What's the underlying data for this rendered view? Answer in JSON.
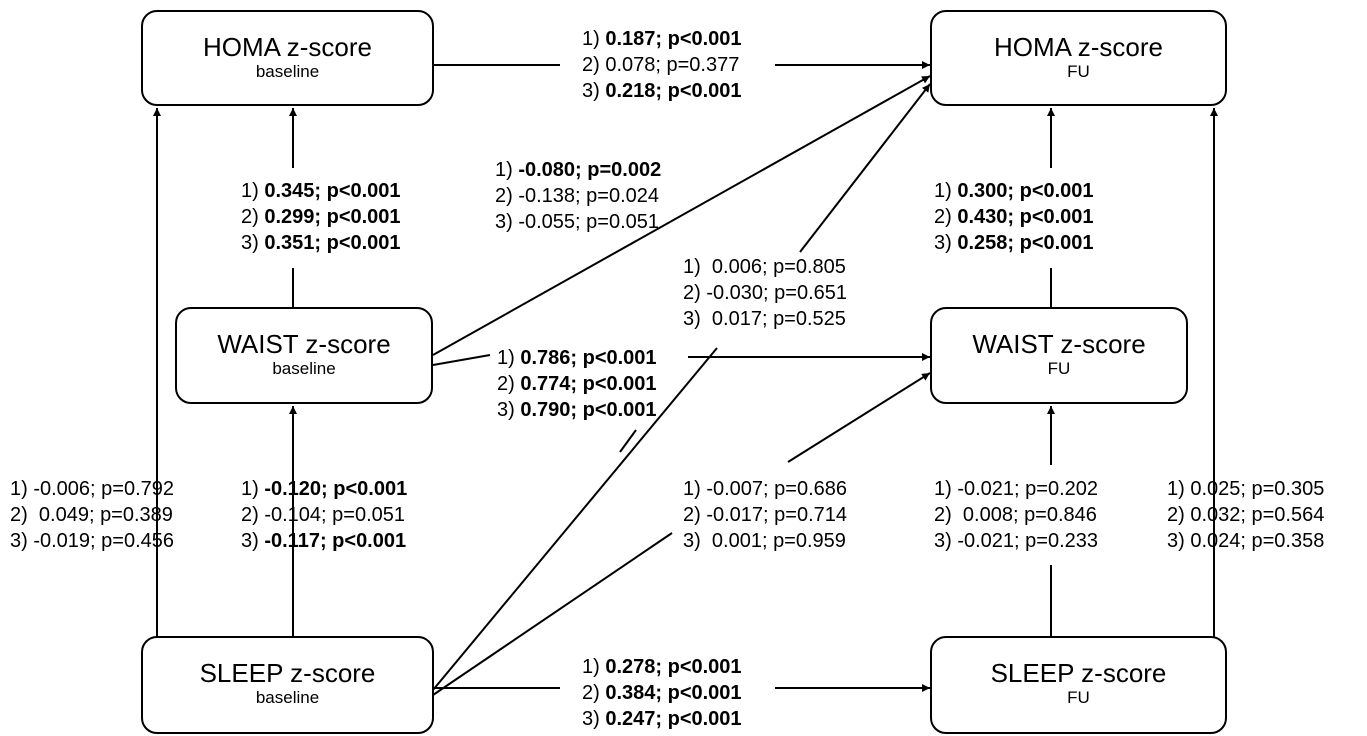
{
  "nodes": {
    "homa_base": {
      "title": "HOMA z-score",
      "sub": "baseline"
    },
    "waist_base": {
      "title": "WAIST z-score",
      "sub": "baseline"
    },
    "sleep_base": {
      "title": "SLEEP z-score",
      "sub": "baseline"
    },
    "homa_fu": {
      "title": "HOMA z-score",
      "sub": "FU"
    },
    "waist_fu": {
      "title": "WAIST z-score",
      "sub": "FU"
    },
    "sleep_fu": {
      "title": "SLEEP z-score",
      "sub": "FU"
    }
  },
  "edges": [
    {
      "id": "homa-base-to-homa-fu",
      "from": "homa_base",
      "to": "homa_fu",
      "lines": [
        {
          "n": "1)",
          "v": "0.187; p<0.001",
          "bold": true
        },
        {
          "n": "2)",
          "v": "0.078; p=0.377",
          "bold": false
        },
        {
          "n": "3)",
          "v": "0.218; p<0.001",
          "bold": true
        }
      ]
    },
    {
      "id": "waist-base-to-homa-base",
      "from": "waist_base",
      "to": "homa_base",
      "lines": [
        {
          "n": "1)",
          "v": "0.345; p<0.001",
          "bold": true
        },
        {
          "n": "2)",
          "v": "0.299; p<0.001",
          "bold": true
        },
        {
          "n": "3)",
          "v": "0.351; p<0.001",
          "bold": true
        }
      ]
    },
    {
      "id": "waist-base-to-homa-fu",
      "from": "waist_base",
      "to": "homa_fu",
      "lines": [
        {
          "n": "1)",
          "v": "-0.080; p=0.002",
          "bold": true
        },
        {
          "n": "2)",
          "v": "-0.138; p=0.024",
          "bold": false
        },
        {
          "n": "3)",
          "v": "-0.055; p=0.051",
          "bold": false
        }
      ]
    },
    {
      "id": "sleep-base-to-homa-fu",
      "from": "sleep_base",
      "to": "homa_fu",
      "lines": [
        {
          "n": "1)",
          "v": " 0.006; p=0.805",
          "bold": false
        },
        {
          "n": "2)",
          "v": "-0.030; p=0.651",
          "bold": false
        },
        {
          "n": "3)",
          "v": " 0.017; p=0.525",
          "bold": false
        }
      ]
    },
    {
      "id": "waist-base-to-waist-fu",
      "from": "waist_base",
      "to": "waist_fu",
      "lines": [
        {
          "n": "1)",
          "v": "0.786; p<0.001",
          "bold": true
        },
        {
          "n": "2)",
          "v": "0.774; p<0.001",
          "bold": true
        },
        {
          "n": "3)",
          "v": "0.790; p<0.001",
          "bold": true
        }
      ]
    },
    {
      "id": "waist-fu-to-homa-fu",
      "from": "waist_fu",
      "to": "homa_fu",
      "lines": [
        {
          "n": "1)",
          "v": "0.300; p<0.001",
          "bold": true
        },
        {
          "n": "2)",
          "v": "0.430; p<0.001",
          "bold": true
        },
        {
          "n": "3)",
          "v": "0.258; p<0.001",
          "bold": true
        }
      ]
    },
    {
      "id": "sleep-base-to-homa-base",
      "from": "sleep_base",
      "to": "homa_base",
      "lines": [
        {
          "n": "1)",
          "v": "-0.006; p=0.792",
          "bold": false
        },
        {
          "n": "2)",
          "v": " 0.049; p=0.389",
          "bold": false
        },
        {
          "n": "3)",
          "v": "-0.019; p=0.456",
          "bold": false
        }
      ]
    },
    {
      "id": "sleep-base-to-waist-base",
      "from": "sleep_base",
      "to": "waist_base",
      "lines": [
        {
          "n": "1)",
          "v": "-0.120; p<0.001",
          "bold": true
        },
        {
          "n": "2)",
          "v": "-0.104; p=0.051",
          "bold": false
        },
        {
          "n": "3)",
          "v": "-0.117; p<0.001",
          "bold": true
        }
      ]
    },
    {
      "id": "sleep-base-to-waist-fu",
      "from": "sleep_base",
      "to": "waist_fu",
      "lines": [
        {
          "n": "1)",
          "v": "-0.007; p=0.686",
          "bold": false
        },
        {
          "n": "2)",
          "v": "-0.017; p=0.714",
          "bold": false
        },
        {
          "n": "3)",
          "v": " 0.001; p=0.959",
          "bold": false
        }
      ]
    },
    {
      "id": "sleep-fu-to-waist-fu",
      "from": "sleep_fu",
      "to": "waist_fu",
      "lines": [
        {
          "n": "1)",
          "v": "-0.021; p=0.202",
          "bold": false
        },
        {
          "n": "2)",
          "v": " 0.008; p=0.846",
          "bold": false
        },
        {
          "n": "3)",
          "v": "-0.021; p=0.233",
          "bold": false
        }
      ]
    },
    {
      "id": "sleep-fu-to-homa-fu",
      "from": "sleep_fu",
      "to": "homa_fu",
      "lines": [
        {
          "n": "1)",
          "v": "0.025; p=0.305",
          "bold": false
        },
        {
          "n": "2)",
          "v": "0.032; p=0.564",
          "bold": false
        },
        {
          "n": "3)",
          "v": "0.024; p=0.358",
          "bold": false
        }
      ]
    },
    {
      "id": "sleep-base-to-sleep-fu",
      "from": "sleep_base",
      "to": "sleep_fu",
      "lines": [
        {
          "n": "1)",
          "v": "0.278; p<0.001",
          "bold": true
        },
        {
          "n": "2)",
          "v": "0.384; p<0.001",
          "bold": true
        },
        {
          "n": "3)",
          "v": "0.247; p<0.001",
          "bold": true
        }
      ]
    }
  ]
}
